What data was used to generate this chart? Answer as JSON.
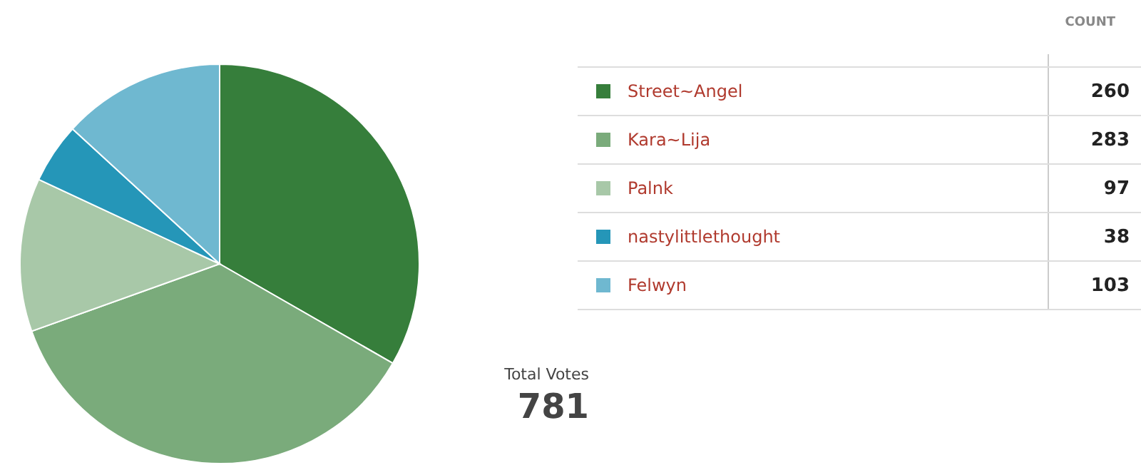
{
  "chart_data": {
    "type": "pie",
    "legend_title": "COUNT",
    "legend": "right",
    "data_labels": true,
    "categories": [
      "Street~Angel",
      "Kara~Lija",
      "Palnk",
      "nastylittlethought",
      "Felwyn"
    ],
    "values": [
      260,
      283,
      97,
      38,
      103
    ],
    "colors": [
      "#367e3b",
      "#7aab7b",
      "#a8c8a8",
      "#2596b8",
      "#6fb8d0"
    ],
    "annotations": [
      "Total Votes",
      "781"
    ]
  }
}
